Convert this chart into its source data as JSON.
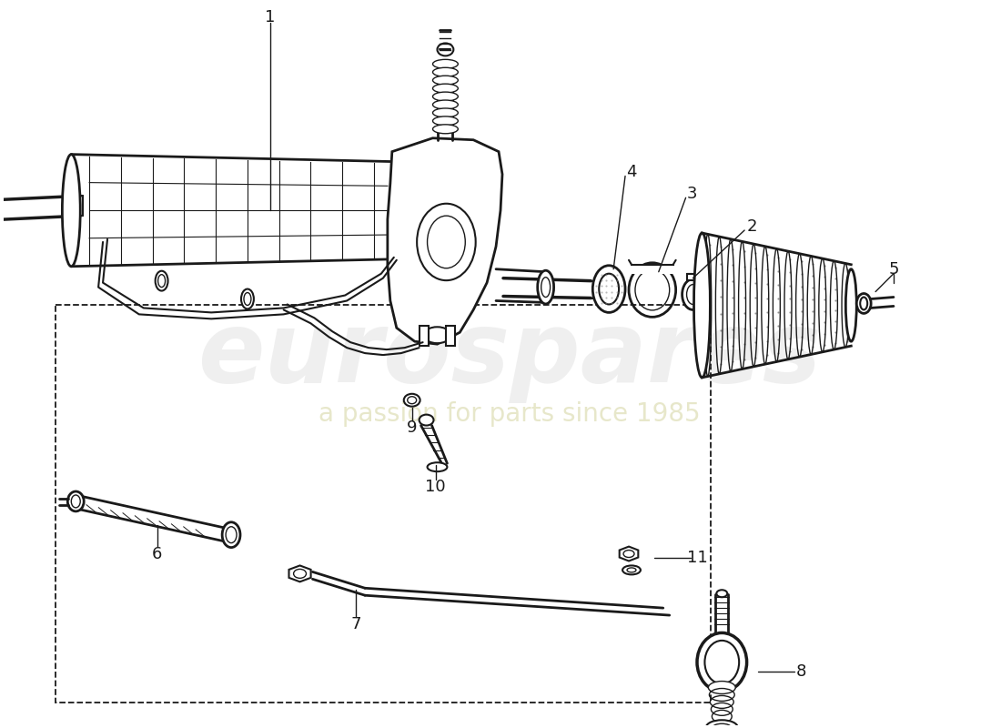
{
  "background_color": "#ffffff",
  "line_color": "#1a1a1a",
  "wm_euro_color": "#cccccc",
  "wm_text_color": "#d4d4a0",
  "figsize": [
    11.0,
    8.0
  ],
  "dpi": 100,
  "part_numbers": [
    "1",
    "2",
    "3",
    "4",
    "5",
    "6",
    "7",
    "8",
    "9",
    "10",
    "11"
  ]
}
